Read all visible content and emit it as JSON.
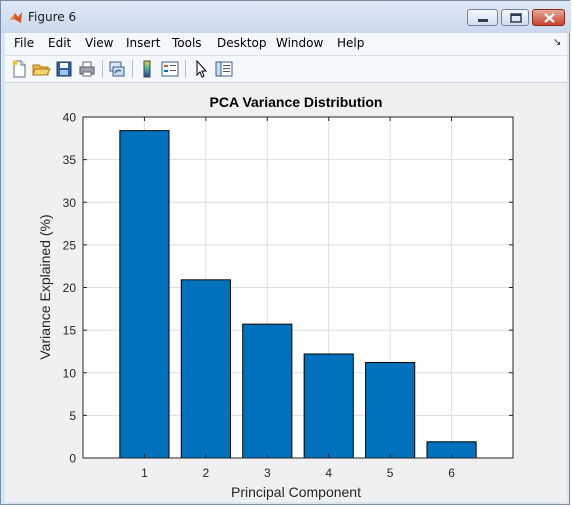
{
  "window": {
    "title": "Figure 6"
  },
  "menu": {
    "items": [
      "File",
      "Edit",
      "View",
      "Insert",
      "Tools",
      "Desktop",
      "Window",
      "Help"
    ],
    "overflow_icon": "dock-arrow-icon"
  },
  "toolbar": {
    "buttons": [
      "new-figure",
      "open-file",
      "save-figure",
      "print-figure",
      "link-plot",
      "insert-colorbar",
      "insert-legend",
      "edit-plot",
      "show-plot-tools"
    ]
  },
  "colors": {
    "bar": "#0072bd",
    "grid": "#dedede",
    "axes_bg": "#ffffff",
    "figure_bg": "#f0f0f0"
  },
  "chart_data": {
    "type": "bar",
    "title": "PCA Variance Distribution",
    "xlabel": "Principal Component",
    "ylabel": "Variance Explained (%)",
    "categories": [
      "1",
      "2",
      "3",
      "4",
      "5",
      "6"
    ],
    "values": [
      38.4,
      20.9,
      15.7,
      12.2,
      11.2,
      1.9
    ],
    "xlim": [
      0,
      7
    ],
    "ylim": [
      0,
      40
    ],
    "yticks": [
      "0",
      "5",
      "10",
      "15",
      "20",
      "25",
      "30",
      "35",
      "40"
    ],
    "grid": true,
    "legend": "none"
  }
}
